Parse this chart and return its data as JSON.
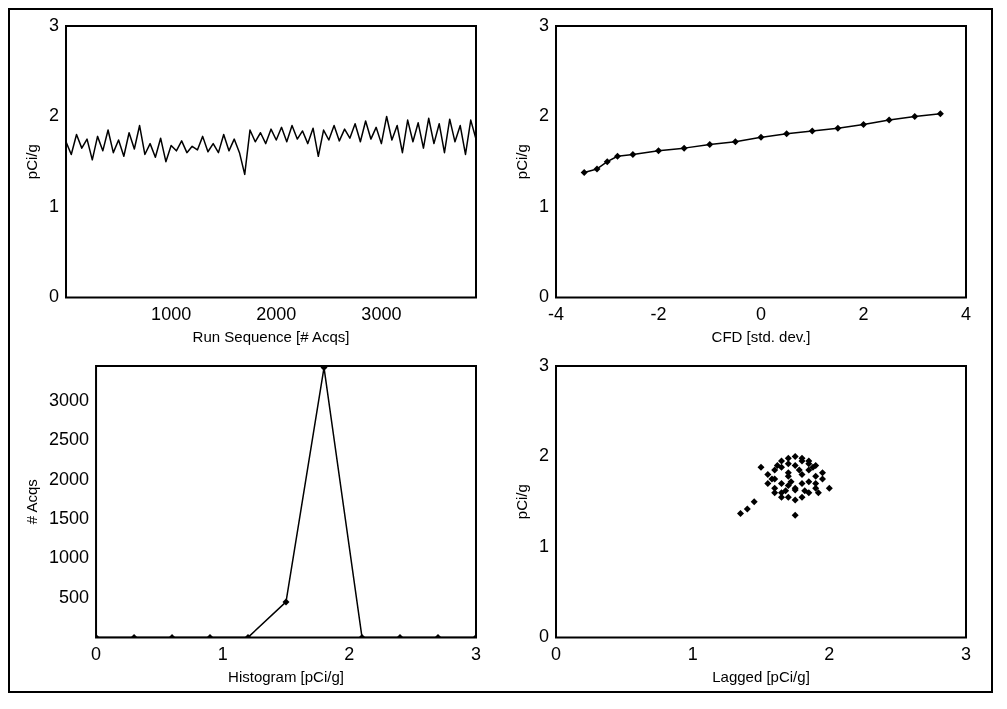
{
  "chart_data": [
    {
      "type": "line",
      "xlabel": "Run Sequence [# Acqs]",
      "ylabel": "pCi/g",
      "xlim": [
        0,
        3900
      ],
      "xticks": [
        1000,
        2000,
        3000
      ],
      "ylim": [
        0,
        3
      ],
      "yticks": [
        0,
        1,
        2,
        3
      ],
      "grid": false,
      "legend": false,
      "marker": "none",
      "series": [
        {
          "color": "#000000",
          "x": [
            0,
            50,
            100,
            150,
            200,
            250,
            300,
            350,
            400,
            450,
            500,
            550,
            600,
            650,
            700,
            750,
            800,
            850,
            900,
            950,
            1000,
            1050,
            1100,
            1150,
            1200,
            1250,
            1300,
            1350,
            1400,
            1450,
            1500,
            1550,
            1600,
            1650,
            1700,
            1750,
            1800,
            1850,
            1900,
            1950,
            2000,
            2050,
            2100,
            2150,
            2200,
            2250,
            2300,
            2350,
            2400,
            2450,
            2500,
            2550,
            2600,
            2650,
            2700,
            2750,
            2800,
            2850,
            2900,
            2950,
            3000,
            3050,
            3100,
            3150,
            3200,
            3250,
            3300,
            3350,
            3400,
            3450,
            3500,
            3550,
            3600,
            3650,
            3700,
            3750,
            3800,
            3850,
            3900
          ],
          "values": [
            1.72,
            1.58,
            1.8,
            1.65,
            1.75,
            1.52,
            1.78,
            1.62,
            1.85,
            1.6,
            1.74,
            1.56,
            1.82,
            1.64,
            1.9,
            1.58,
            1.7,
            1.55,
            1.76,
            1.5,
            1.68,
            1.62,
            1.73,
            1.6,
            1.67,
            1.63,
            1.78,
            1.61,
            1.7,
            1.6,
            1.8,
            1.62,
            1.75,
            1.6,
            1.36,
            1.85,
            1.72,
            1.82,
            1.7,
            1.86,
            1.74,
            1.88,
            1.72,
            1.9,
            1.75,
            1.84,
            1.7,
            1.87,
            1.56,
            1.85,
            1.74,
            1.9,
            1.73,
            1.86,
            1.76,
            1.92,
            1.72,
            1.95,
            1.75,
            1.88,
            1.7,
            2.0,
            1.74,
            1.9,
            1.6,
            1.96,
            1.72,
            1.93,
            1.65,
            1.98,
            1.7,
            1.92,
            1.6,
            1.97,
            1.72,
            1.9,
            1.58,
            1.96,
            1.75
          ]
        }
      ]
    },
    {
      "type": "line",
      "xlabel": "CFD [std. dev.]",
      "ylabel": "pCi/g",
      "xlim": [
        -4,
        4
      ],
      "xticks": [
        -4,
        -2,
        0,
        2,
        4
      ],
      "ylim": [
        0,
        3
      ],
      "yticks": [
        0,
        1,
        2,
        3
      ],
      "grid": false,
      "legend": false,
      "marker": "diamond",
      "series": [
        {
          "color": "#000000",
          "x": [
            -3.45,
            -3.2,
            -3.0,
            -2.8,
            -2.5,
            -2,
            -1.5,
            -1,
            -0.5,
            0,
            0.5,
            1,
            1.5,
            2,
            2.5,
            3,
            3.5
          ],
          "values": [
            1.38,
            1.42,
            1.5,
            1.56,
            1.58,
            1.62,
            1.65,
            1.69,
            1.72,
            1.77,
            1.81,
            1.84,
            1.87,
            1.91,
            1.96,
            2.0,
            2.03
          ]
        }
      ]
    },
    {
      "type": "line",
      "xlabel": "Histogram [pCi/g]",
      "ylabel": "# Acqs",
      "xlim": [
        0,
        3
      ],
      "xticks": [
        0,
        1,
        2,
        3
      ],
      "ylim": [
        0,
        3440
      ],
      "yticks": [
        500,
        1000,
        1500,
        2000,
        2500,
        3000
      ],
      "grid": false,
      "legend": false,
      "marker": "diamond",
      "series": [
        {
          "color": "#000000",
          "x": [
            0,
            0.3,
            0.6,
            0.9,
            1.2,
            1.5,
            1.8,
            2.1,
            2.4,
            2.7,
            3
          ],
          "values": [
            0,
            0,
            0,
            0,
            0,
            450,
            3420,
            0,
            0,
            0,
            0
          ]
        }
      ]
    },
    {
      "type": "scatter",
      "xlabel": "Lagged [pCi/g]",
      "ylabel": "pCi/g",
      "xlim": [
        0,
        3
      ],
      "xticks": [
        0,
        1,
        2,
        3
      ],
      "ylim": [
        0,
        3
      ],
      "yticks": [
        0,
        1,
        2,
        3
      ],
      "grid": false,
      "legend": false,
      "marker": "diamond",
      "series": [
        {
          "color": "#000000",
          "x": [
            1.35,
            1.4,
            1.45,
            1.75,
            2.0,
            1.55,
            1.6,
            1.65,
            1.7,
            1.75,
            1.8,
            1.85,
            1.9,
            1.95,
            1.55,
            1.6,
            1.65,
            1.7,
            1.75,
            1.8,
            1.85,
            1.9,
            1.95,
            1.6,
            1.65,
            1.7,
            1.75,
            1.8,
            1.85,
            1.9,
            1.6,
            1.65,
            1.7,
            1.75,
            1.8,
            1.85,
            1.9,
            1.65,
            1.7,
            1.75,
            1.8,
            1.85,
            1.58,
            1.62,
            1.68,
            1.72,
            1.78,
            1.82,
            1.88,
            1.92,
            1.7,
            1.5
          ],
          "values": [
            1.37,
            1.42,
            1.5,
            1.35,
            1.65,
            1.7,
            1.65,
            1.6,
            1.55,
            1.52,
            1.55,
            1.6,
            1.65,
            1.75,
            1.8,
            1.75,
            1.7,
            1.68,
            1.65,
            1.7,
            1.72,
            1.78,
            1.82,
            1.85,
            1.88,
            1.82,
            1.63,
            1.8,
            1.85,
            1.9,
            1.6,
            1.55,
            1.78,
            1.9,
            1.95,
            1.92,
            1.7,
            1.95,
            1.98,
            2.0,
            1.98,
            1.95,
            1.75,
            1.9,
            1.62,
            1.72,
            1.85,
            1.62,
            1.88,
            1.6,
            1.92,
            1.88
          ]
        }
      ]
    }
  ]
}
